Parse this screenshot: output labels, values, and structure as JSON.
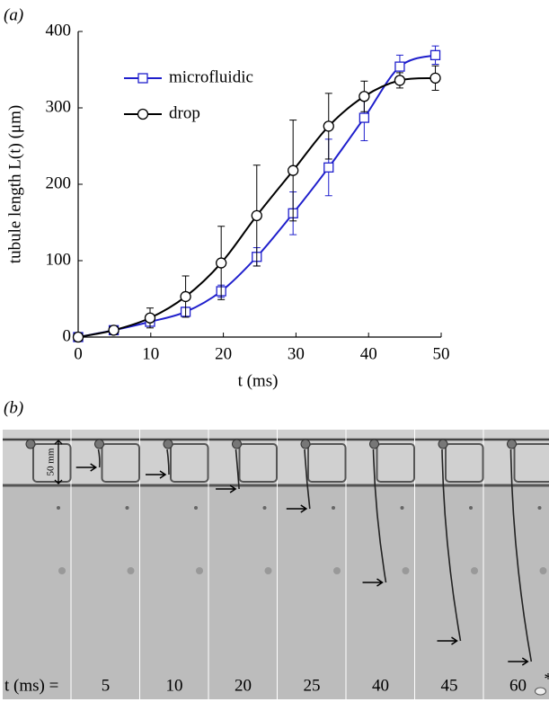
{
  "panel_labels": [
    "(a)",
    "(b)"
  ],
  "chart_data": {
    "type": "line",
    "xlabel": "t (ms)",
    "ylabel": "tubule length L(t) (μm)",
    "x": [
      0,
      4.9,
      9.9,
      14.8,
      19.7,
      24.6,
      29.6,
      34.5,
      39.4,
      44.3,
      49.2
    ],
    "series": [
      {
        "name": "microfluidic",
        "color": "#1f1fcc",
        "marker": "square",
        "values": [
          0,
          9,
          20,
          33,
          60,
          105,
          162,
          222,
          287,
          354,
          369
        ],
        "errors": [
          null,
          3,
          5,
          6,
          8,
          12,
          28,
          37,
          30,
          15,
          12
        ]
      },
      {
        "name": "drop",
        "color": "#000000",
        "marker": "circle",
        "values": [
          0,
          9,
          25,
          53,
          97,
          159,
          218,
          276,
          315,
          336,
          339
        ],
        "errors": [
          null,
          4,
          13,
          27,
          48,
          66,
          66,
          43,
          20,
          10,
          16
        ]
      }
    ],
    "xlim": [
      0,
      50
    ],
    "xticks": [
      0,
      10,
      20,
      30,
      40,
      50
    ],
    "ylim": [
      0,
      400
    ],
    "yticks": [
      0,
      100,
      200,
      300,
      400
    ],
    "grid": false,
    "legend": "upper left"
  },
  "micrographs": {
    "time_label": "t (ms) =",
    "times": [
      "5",
      "10",
      "20",
      "25",
      "40",
      "45",
      "60"
    ],
    "scale_bar": "50 mm",
    "asterisk": "*"
  }
}
